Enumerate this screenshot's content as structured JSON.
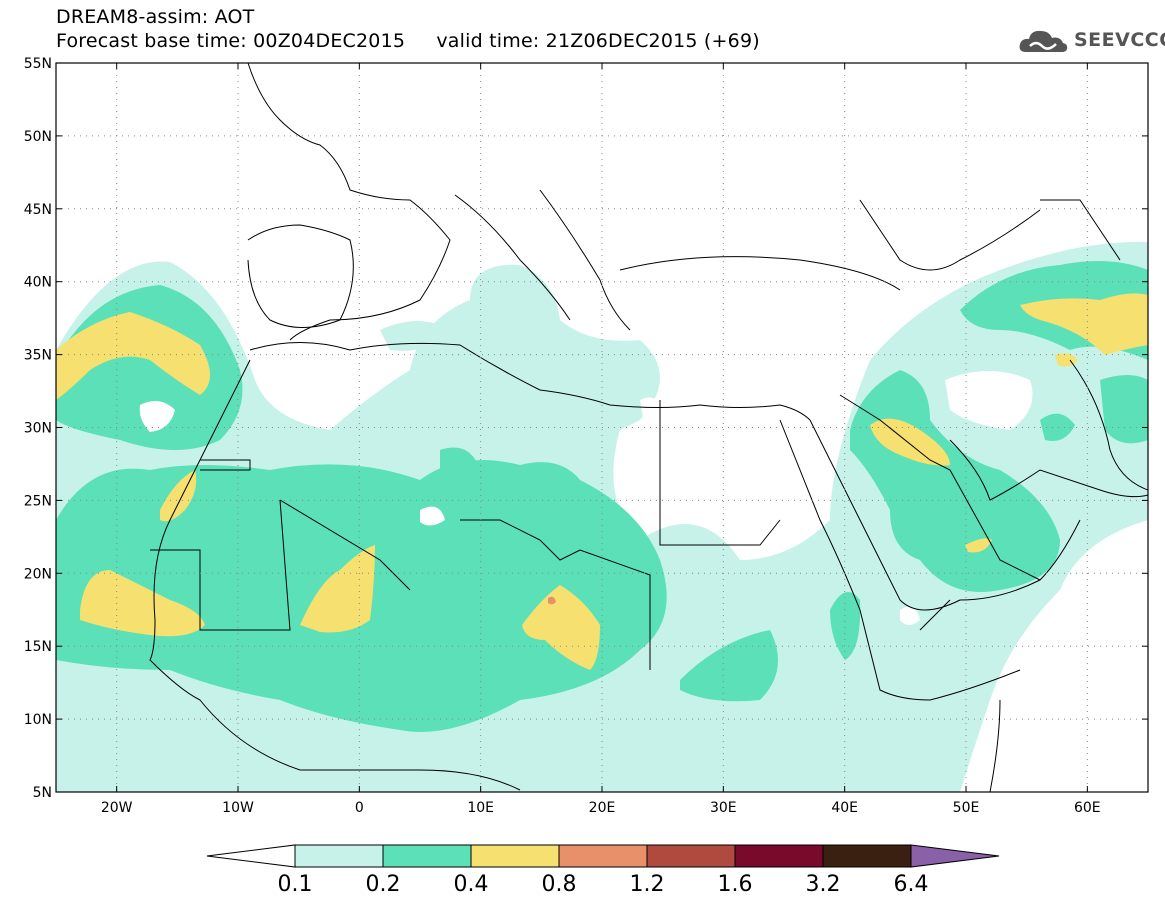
{
  "header": {
    "title_line1": "DREAM8-assim: AOT",
    "title_line2": "Forecast base time: 00Z04DEC2015     valid time: 21Z06DEC2015 (+69)"
  },
  "logo": {
    "text": "SEEVCCC",
    "icon": "cloud-icon"
  },
  "map": {
    "lon_range": [
      -25,
      65
    ],
    "lat_range": [
      5,
      55
    ],
    "lat_ticks": [
      "55N",
      "50N",
      "45N",
      "40N",
      "35N",
      "30N",
      "25N",
      "20N",
      "15N",
      "10N",
      "5N"
    ],
    "lon_ticks": [
      "20W",
      "10W",
      "0",
      "10E",
      "20E",
      "30E",
      "40E",
      "50E",
      "60E"
    ],
    "grid": "dotted",
    "ocean_color": "#ffffff"
  },
  "colorbar": {
    "labels": [
      "0.1",
      "0.2",
      "0.4",
      "0.8",
      "1.2",
      "1.6",
      "3.2",
      "6.4"
    ],
    "colors": [
      "#ffffff",
      "#c6f2ea",
      "#5ce0b8",
      "#f5e070",
      "#e8906a",
      "#b04a3e",
      "#7a0a2c",
      "#3a2010",
      "#8a60a8"
    ]
  }
}
